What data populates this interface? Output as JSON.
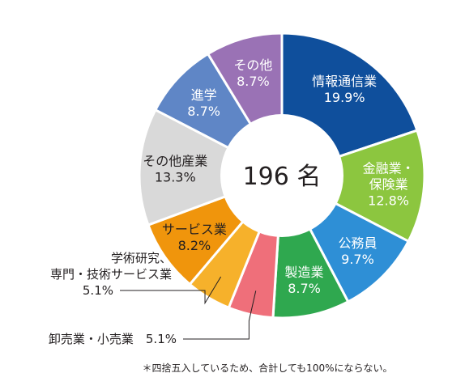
{
  "chart_data": {
    "type": "pie",
    "center_label": "196 名",
    "slices": [
      {
        "lines": [
          "情報通信業",
          "19.9%"
        ],
        "value": 19.9,
        "color": "#0f4f9c"
      },
      {
        "lines": [
          "金融業・",
          "保険業",
          "12.8%"
        ],
        "value": 12.8,
        "color": "#8cc63f"
      },
      {
        "lines": [
          "公務員",
          "9.7%"
        ],
        "value": 9.7,
        "color": "#2e8fd6"
      },
      {
        "lines": [
          "製造業",
          "8.7%"
        ],
        "value": 8.7,
        "color": "#2fa84f"
      },
      {
        "lines": [
          "卸売業・小売業　5.1%"
        ],
        "value": 5.1,
        "color": "#ef6f7a",
        "external": true
      },
      {
        "lines": [
          "学術研究、",
          "専門・技術サービス業",
          "5.1%"
        ],
        "value": 5.1,
        "color": "#f6b12b",
        "external": true
      },
      {
        "lines": [
          "サービス業",
          "8.2%"
        ],
        "value": 8.2,
        "color": "#f0950c",
        "dark": true
      },
      {
        "lines": [
          "その他産業",
          "13.3%"
        ],
        "value": 13.3,
        "color": "#d9d9d9",
        "dark": true
      },
      {
        "lines": [
          "進学",
          "8.7%"
        ],
        "value": 8.7,
        "color": "#5f86c6"
      },
      {
        "lines": [
          "その他",
          "8.7%"
        ],
        "value": 8.7,
        "color": "#9a72b5"
      }
    ]
  },
  "footnote": "＊四捨五入しているため、合計しても100%にならない。"
}
